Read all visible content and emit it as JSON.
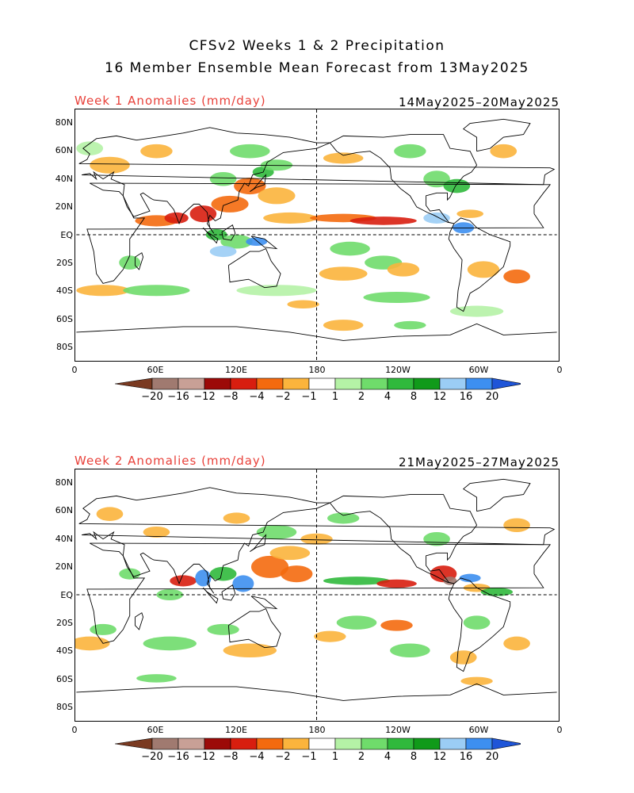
{
  "title_line1": "CFSv2 Weeks 1 & 2 Precipitation",
  "title_line2": "16 Member Ensemble Mean Forecast from 13May2025",
  "panels": [
    {
      "label": "Week 1 Anomalies (mm/day)",
      "dates": "14May2025–20May2025"
    },
    {
      "label": "Week 2 Anomalies (mm/day)",
      "dates": "21May2025–27May2025"
    }
  ],
  "lat_ticks": [
    "80N",
    "60N",
    "40N",
    "20N",
    "EQ",
    "20S",
    "40S",
    "60S",
    "80S"
  ],
  "lon_ticks": [
    "0",
    "60E",
    "120E",
    "180",
    "120W",
    "60W",
    "0"
  ],
  "colorbar": {
    "labels": [
      "−20",
      "−16",
      "−12",
      "−8",
      "−4",
      "−2",
      "−1",
      "1",
      "2",
      "4",
      "8",
      "12",
      "16",
      "20"
    ],
    "colors": [
      "#7a3a21",
      "#a07a70",
      "#c8a096",
      "#9c0a08",
      "#d81e0f",
      "#f46a0e",
      "#fbb43c",
      "#ffffff",
      "#b5f2a6",
      "#6fdc6b",
      "#30b93c",
      "#109a1a",
      "#9bcdf5",
      "#3d8ff0",
      "#1f55d8"
    ]
  }
}
